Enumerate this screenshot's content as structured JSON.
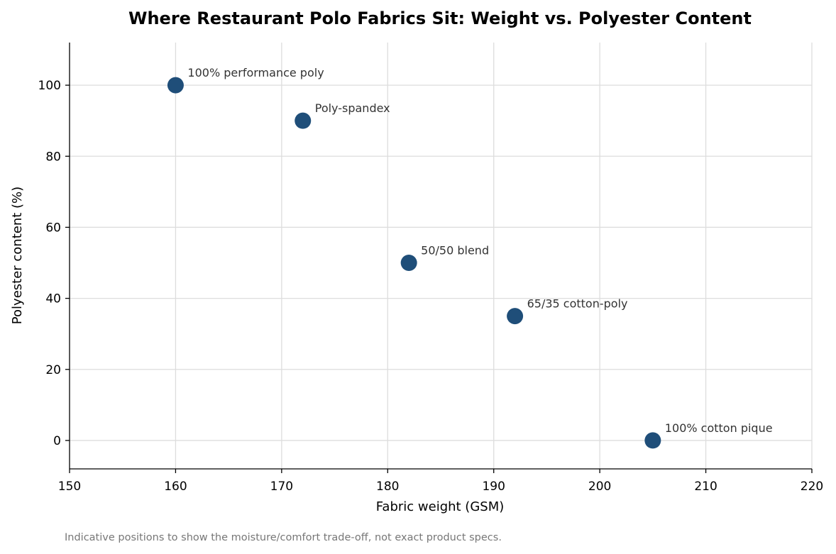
{
  "chart_data": {
    "type": "scatter",
    "title": "Where Restaurant Polo Fabrics Sit: Weight vs. Polyester Content",
    "xlabel": "Fabric weight (GSM)",
    "ylabel": "Polyester content (%)",
    "xlim": [
      150,
      220
    ],
    "ylim": [
      -8,
      112
    ],
    "xticks": [
      150,
      160,
      170,
      180,
      190,
      200,
      210,
      220
    ],
    "yticks": [
      0,
      20,
      40,
      60,
      80,
      100
    ],
    "grid": true,
    "point_color": "#1f4e79",
    "points": [
      {
        "x": 160,
        "y": 100,
        "label": "100% performance poly"
      },
      {
        "x": 172,
        "y": 90,
        "label": "Poly-spandex"
      },
      {
        "x": 182,
        "y": 50,
        "label": "50/50 blend"
      },
      {
        "x": 192,
        "y": 35,
        "label": "65/35 cotton-poly"
      },
      {
        "x": 205,
        "y": 0,
        "label": "100% cotton pique"
      }
    ],
    "footnote": "Indicative positions to show the moisture/comfort trade-off, not exact product specs."
  }
}
